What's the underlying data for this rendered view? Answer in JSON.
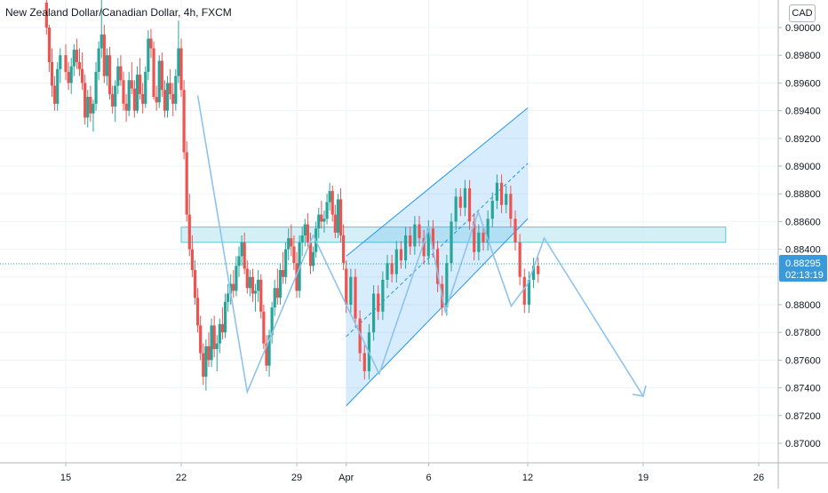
{
  "chart_data": {
    "type": "candlestick",
    "title": "New Zealand Dollar/Canadian Dollar, 4h, FXCM",
    "currency": "CAD",
    "y_ticks": [
      "0.90000",
      "0.89800",
      "0.89600",
      "0.89400",
      "0.89200",
      "0.89000",
      "0.88800",
      "0.88600",
      "0.88400",
      "0.88200",
      "0.88000",
      "0.87800",
      "0.87600",
      "0.87400",
      "0.87200",
      "0.87000"
    ],
    "ylim": [
      0.869,
      0.9013
    ],
    "x_ticks": [
      "15",
      "22",
      "29",
      "Apr",
      "6",
      "12",
      "19",
      "26"
    ],
    "x_tick_dates": [
      "2024-03-15",
      "2024-03-22",
      "2024-03-29",
      "2024-04-01",
      "2024-04-06",
      "2024-04-12",
      "2024-04-19",
      "2024-04-26"
    ],
    "current_price": {
      "value": "0.88295",
      "countdown": "02:13:19"
    },
    "colors": {
      "up": "#26a69a",
      "down": "#ef5350",
      "projection": "#8ec3ee",
      "zone_fill": "#ccecf5",
      "zone_stroke": "#5cc6d8",
      "price_label": "#3a9ad9"
    },
    "resistance_zone": {
      "y_range": [
        0.8845,
        0.8856
      ],
      "x_range": [
        "2024-03-22",
        "2024-04-24"
      ]
    },
    "channel": {
      "upper": [
        [
          "2024-04-01 00:00",
          0.8835
        ],
        [
          "2024-04-12 00:00",
          0.8942
        ]
      ],
      "lower": [
        [
          "2024-04-01 00:00",
          0.8727
        ],
        [
          "2024-04-12 00:00",
          0.8862
        ]
      ],
      "mid": [
        [
          "2024-04-01 00:00",
          0.8777
        ],
        [
          "2024-04-12 00:00",
          0.8902
        ]
      ],
      "x_range": [
        "2024-04-01 00:00",
        "2024-04-12 00:00"
      ]
    },
    "projection_path": [
      [
        "2024-03-23 00:00",
        0.8951
      ],
      [
        "2024-03-26 00:00",
        0.8737
      ],
      [
        "2024-03-30 00:00",
        0.885
      ],
      [
        "2024-04-03 00:00",
        0.875
      ],
      [
        "2024-04-06 00:00",
        0.8855
      ],
      [
        "2024-04-07 00:00",
        0.8795
      ],
      [
        "2024-04-09 00:00",
        0.8867
      ],
      [
        "2024-04-11 00:00",
        0.8799
      ],
      [
        "2024-04-12 00:00",
        0.8815
      ],
      [
        "2024-04-13 00:00",
        0.8848
      ],
      [
        "2024-04-19 00:00",
        0.8734
      ]
    ],
    "ohlc": [
      [
        "03-13 20",
        0.9018,
        0.903,
        0.8995,
        0.9
      ],
      [
        "03-14 00",
        0.9,
        0.9002,
        0.8968,
        0.8975
      ],
      [
        "03-14 04",
        0.8975,
        0.8985,
        0.895,
        0.8958
      ],
      [
        "03-14 08",
        0.8958,
        0.8965,
        0.894,
        0.8945
      ],
      [
        "03-14 12",
        0.8945,
        0.8975,
        0.894,
        0.897
      ],
      [
        "03-14 16",
        0.897,
        0.8985,
        0.896,
        0.898
      ],
      [
        "03-15 00",
        0.898,
        0.8988,
        0.8962,
        0.8968
      ],
      [
        "03-15 04",
        0.8968,
        0.8975,
        0.8955,
        0.896
      ],
      [
        "03-15 08",
        0.896,
        0.8978,
        0.8952,
        0.8972
      ],
      [
        "03-15 12",
        0.8972,
        0.8988,
        0.8965,
        0.8984
      ],
      [
        "03-15 16",
        0.8984,
        0.8992,
        0.897,
        0.8975
      ],
      [
        "03-15 20",
        0.8975,
        0.8985,
        0.8965,
        0.897
      ],
      [
        "03-16 00",
        0.897,
        0.8982,
        0.8955,
        0.896
      ],
      [
        "03-16 04",
        0.896,
        0.8966,
        0.893,
        0.8935
      ],
      [
        "03-16 08",
        0.8935,
        0.8955,
        0.8928,
        0.895
      ],
      [
        "03-16 12",
        0.895,
        0.8958,
        0.8932,
        0.8938
      ],
      [
        "03-16 16",
        0.8938,
        0.8948,
        0.8925,
        0.8945
      ],
      [
        "03-16 20",
        0.8945,
        0.8975,
        0.894,
        0.8968
      ],
      [
        "03-17 00",
        0.8968,
        0.899,
        0.8962,
        0.8985
      ],
      [
        "03-17 04",
        0.8985,
        0.903,
        0.8978,
        0.8995
      ],
      [
        "03-17 08",
        0.8995,
        0.9002,
        0.896,
        0.8965
      ],
      [
        "03-17 12",
        0.8965,
        0.8985,
        0.8958,
        0.898
      ],
      [
        "03-17 16",
        0.898,
        0.8986,
        0.8948,
        0.8952
      ],
      [
        "03-17 20",
        0.8952,
        0.8958,
        0.8938,
        0.8943
      ],
      [
        "03-18 00",
        0.8943,
        0.8962,
        0.8932,
        0.8958
      ],
      [
        "03-18 04",
        0.8958,
        0.8978,
        0.8952,
        0.8972
      ],
      [
        "03-18 08",
        0.8972,
        0.898,
        0.8958,
        0.8962
      ],
      [
        "03-18 12",
        0.8962,
        0.8968,
        0.894,
        0.8945
      ],
      [
        "03-18 16",
        0.8945,
        0.8952,
        0.8932,
        0.894
      ],
      [
        "03-18 20",
        0.894,
        0.8968,
        0.8936,
        0.8962
      ],
      [
        "03-19 00",
        0.8962,
        0.8975,
        0.8952,
        0.8956
      ],
      [
        "03-19 04",
        0.8956,
        0.8962,
        0.8935,
        0.894
      ],
      [
        "03-19 08",
        0.894,
        0.8972,
        0.8938,
        0.8966
      ],
      [
        "03-19 12",
        0.8966,
        0.8978,
        0.8948,
        0.8952
      ],
      [
        "03-19 16",
        0.8952,
        0.896,
        0.8938,
        0.8945
      ],
      [
        "03-19 20",
        0.8945,
        0.8972,
        0.8942,
        0.8968
      ],
      [
        "03-20 00",
        0.8968,
        0.8998,
        0.8962,
        0.8992
      ],
      [
        "03-20 04",
        0.8992,
        0.8999,
        0.8978,
        0.8985
      ],
      [
        "03-20 08",
        0.8985,
        0.899,
        0.8948,
        0.895
      ],
      [
        "03-20 12",
        0.895,
        0.8958,
        0.894,
        0.8946
      ],
      [
        "03-20 16",
        0.8946,
        0.898,
        0.8942,
        0.8976
      ],
      [
        "03-20 20",
        0.8976,
        0.8982,
        0.895,
        0.8955
      ],
      [
        "03-21 00",
        0.8955,
        0.8962,
        0.8935,
        0.894
      ],
      [
        "03-21 04",
        0.894,
        0.8965,
        0.8935,
        0.896
      ],
      [
        "03-21 08",
        0.896,
        0.897,
        0.8948,
        0.8952
      ],
      [
        "03-21 12",
        0.8952,
        0.896,
        0.8936,
        0.8945
      ],
      [
        "03-21 16",
        0.8945,
        0.897,
        0.894,
        0.8965
      ],
      [
        "03-21 20",
        0.8965,
        0.9005,
        0.896,
        0.8985
      ],
      [
        "03-22 00",
        0.8985,
        0.8992,
        0.895,
        0.8955
      ],
      [
        "03-22 04",
        0.8955,
        0.8962,
        0.8905,
        0.891
      ],
      [
        "03-22 08",
        0.891,
        0.8918,
        0.886,
        0.8865
      ],
      [
        "03-22 12",
        0.8865,
        0.888,
        0.8835,
        0.884
      ],
      [
        "03-22 16",
        0.884,
        0.885,
        0.882,
        0.8825
      ],
      [
        "03-22 20",
        0.8825,
        0.8832,
        0.88,
        0.8805
      ],
      [
        "03-23 00",
        0.8805,
        0.8812,
        0.878,
        0.8785
      ],
      [
        "03-23 04",
        0.8785,
        0.8792,
        0.876,
        0.8765
      ],
      [
        "03-23 08",
        0.8765,
        0.8772,
        0.8742,
        0.8748
      ],
      [
        "03-23 12",
        0.8748,
        0.8775,
        0.8738,
        0.877
      ],
      [
        "03-23 16",
        0.877,
        0.878,
        0.8755,
        0.876
      ],
      [
        "03-23 20",
        0.876,
        0.879,
        0.8755,
        0.8785
      ],
      [
        "03-24 00",
        0.8785,
        0.8792,
        0.8762,
        0.8768
      ],
      [
        "03-24 04",
        0.8768,
        0.8778,
        0.8752,
        0.8772
      ],
      [
        "03-24 08",
        0.8772,
        0.879,
        0.8765,
        0.8786
      ],
      [
        "03-24 12",
        0.8786,
        0.8798,
        0.8775,
        0.878
      ],
      [
        "03-24 16",
        0.878,
        0.8808,
        0.8776,
        0.8802
      ],
      [
        "03-24 20",
        0.8802,
        0.8815,
        0.8795,
        0.8808
      ],
      [
        "03-25 00",
        0.8808,
        0.8822,
        0.88,
        0.8815
      ],
      [
        "03-25 04",
        0.8815,
        0.8825,
        0.8805,
        0.881
      ],
      [
        "03-25 08",
        0.881,
        0.8835,
        0.8806,
        0.8828
      ],
      [
        "03-25 12",
        0.8828,
        0.8842,
        0.882,
        0.8835
      ],
      [
        "03-25 16",
        0.8835,
        0.885,
        0.8828,
        0.8845
      ],
      [
        "03-25 20",
        0.8845,
        0.8852,
        0.8822,
        0.8826
      ],
      [
        "03-26 00",
        0.8826,
        0.8832,
        0.8808,
        0.8812
      ],
      [
        "03-26 04",
        0.8812,
        0.8825,
        0.8806,
        0.882
      ],
      [
        "03-26 08",
        0.882,
        0.8826,
        0.8802,
        0.8808
      ],
      [
        "03-26 12",
        0.8808,
        0.8815,
        0.8795,
        0.881
      ],
      [
        "03-26 16",
        0.881,
        0.8825,
        0.8802,
        0.8818
      ],
      [
        "03-26 20",
        0.8818,
        0.8822,
        0.879,
        0.8795
      ],
      [
        "03-27 00",
        0.8795,
        0.88,
        0.8768,
        0.8772
      ],
      [
        "03-27 04",
        0.8772,
        0.8778,
        0.8752,
        0.8756
      ],
      [
        "03-27 08",
        0.8756,
        0.8782,
        0.8748,
        0.8778
      ],
      [
        "03-27 12",
        0.8778,
        0.8802,
        0.8772,
        0.8798
      ],
      [
        "03-27 16",
        0.8798,
        0.8818,
        0.8792,
        0.8812
      ],
      [
        "03-27 20",
        0.8812,
        0.8826,
        0.88,
        0.8805
      ],
      [
        "03-28 00",
        0.8805,
        0.883,
        0.88,
        0.8825
      ],
      [
        "03-28 04",
        0.8825,
        0.8838,
        0.8815,
        0.882
      ],
      [
        "03-28 08",
        0.882,
        0.8845,
        0.8815,
        0.884
      ],
      [
        "03-28 12",
        0.884,
        0.8855,
        0.8832,
        0.8848
      ],
      [
        "03-28 16",
        0.8848,
        0.8858,
        0.8835,
        0.8842
      ],
      [
        "03-28 20",
        0.8842,
        0.885,
        0.8825,
        0.883
      ],
      [
        "03-29 00",
        0.883,
        0.8838,
        0.8805,
        0.881
      ],
      [
        "03-29 04",
        0.881,
        0.885,
        0.8805,
        0.8845
      ],
      [
        "03-29 08",
        0.8845,
        0.8856,
        0.8835,
        0.885
      ],
      [
        "03-29 12",
        0.885,
        0.8862,
        0.8842,
        0.8858
      ],
      [
        "03-29 16",
        0.8858,
        0.8866,
        0.884,
        0.8845
      ],
      [
        "03-29 20",
        0.8845,
        0.8852,
        0.8822,
        0.8828
      ],
      [
        "03-30 00",
        0.8828,
        0.8842,
        0.8824,
        0.8838
      ],
      [
        "03-30 04",
        0.8838,
        0.886,
        0.8834,
        0.8855
      ],
      [
        "03-30 08",
        0.8855,
        0.887,
        0.8848,
        0.8865
      ],
      [
        "03-30 12",
        0.8865,
        0.8875,
        0.8855,
        0.886
      ],
      [
        "03-30 16",
        0.886,
        0.8868,
        0.8852,
        0.8862
      ],
      [
        "03-30 20",
        0.8862,
        0.888,
        0.8858,
        0.8874
      ],
      [
        "03-31 00",
        0.8874,
        0.8888,
        0.8868,
        0.8882
      ],
      [
        "03-31 04",
        0.8882,
        0.8886,
        0.886,
        0.8865
      ],
      [
        "03-31 08",
        0.8865,
        0.8872,
        0.8848,
        0.8852
      ],
      [
        "03-31 12",
        0.8852,
        0.888,
        0.8848,
        0.8876
      ],
      [
        "03-31 16",
        0.8876,
        0.8884,
        0.8845,
        0.885
      ],
      [
        "03-31 20",
        0.885,
        0.8858,
        0.8825,
        0.883
      ]
    ]
  }
}
